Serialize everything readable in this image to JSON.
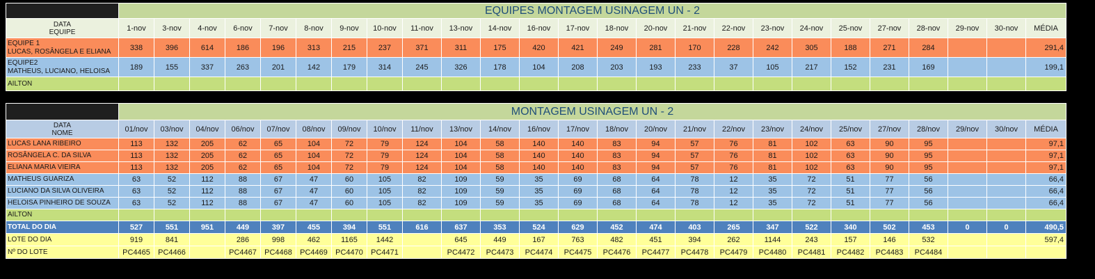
{
  "table1": {
    "title": "EQUIPES MONTAGEM USINAGEM UN - 2",
    "header_label_top": "DATA",
    "header_label_bottom": "EQUIPE",
    "dates": [
      "1-nov",
      "3-nov",
      "4-nov",
      "6-nov",
      "7-nov",
      "8-nov",
      "9-nov",
      "10-nov",
      "11-nov",
      "13-nov",
      "14-nov",
      "16-nov",
      "17-nov",
      "18-nov",
      "20-nov",
      "21-nov",
      "22-nov",
      "23-nov",
      "24-nov",
      "25-nov",
      "27-nov",
      "28-nov",
      "29-nov",
      "30-nov"
    ],
    "avg_label": "MÉDIA",
    "rows": [
      {
        "label1": "EQUIPE 1",
        "label2": "LUCAS, ROSÂNGELA E ELIANA",
        "color": "orange",
        "values": [
          "338",
          "396",
          "614",
          "186",
          "196",
          "313",
          "215",
          "237",
          "371",
          "311",
          "175",
          "420",
          "421",
          "249",
          "281",
          "170",
          "228",
          "242",
          "305",
          "188",
          "271",
          "284",
          "",
          ""
        ],
        "avg": "291,4"
      },
      {
        "label1": "EQUIPE2",
        "label2": "MATHEUS, LUCIANO, HELOISA",
        "color": "blue",
        "values": [
          "189",
          "155",
          "337",
          "263",
          "201",
          "142",
          "179",
          "314",
          "245",
          "326",
          "178",
          "104",
          "208",
          "203",
          "193",
          "233",
          "37",
          "105",
          "217",
          "152",
          "231",
          "169",
          "",
          ""
        ],
        "avg": "199,1"
      },
      {
        "label1": "AILTON",
        "label2": "",
        "color": "green",
        "values": [
          "",
          "",
          "",
          "",
          "",
          "",
          "",
          "",
          "",
          "",
          "",
          "",
          "",
          "",
          "",
          "",
          "",
          "",
          "",
          "",
          "",
          "",
          "",
          ""
        ],
        "avg": ""
      }
    ]
  },
  "table2": {
    "title": "MONTAGEM USINAGEM UN - 2",
    "header_label_top": "DATA",
    "header_label_bottom": "NOME",
    "dates": [
      "01/nov",
      "03/nov",
      "04/nov",
      "06/nov",
      "07/nov",
      "08/nov",
      "09/nov",
      "10/nov",
      "11/nov",
      "13/nov",
      "14/nov",
      "16/nov",
      "17/nov",
      "18/nov",
      "20/nov",
      "21/nov",
      "22/nov",
      "23/nov",
      "24/nov",
      "25/nov",
      "27/nov",
      "28/nov",
      "29/nov",
      "30/nov"
    ],
    "avg_label": "MÉDIA",
    "rows": [
      {
        "name": "LUCAS LANA RIBEIRO",
        "color": "orange",
        "values": [
          "113",
          "132",
          "205",
          "62",
          "65",
          "104",
          "72",
          "79",
          "124",
          "104",
          "58",
          "140",
          "140",
          "83",
          "94",
          "57",
          "76",
          "81",
          "102",
          "63",
          "90",
          "95",
          "",
          ""
        ],
        "avg": "97,1"
      },
      {
        "name": "ROSÂNGELA C. DA SILVA",
        "color": "orange",
        "values": [
          "113",
          "132",
          "205",
          "62",
          "65",
          "104",
          "72",
          "79",
          "124",
          "104",
          "58",
          "140",
          "140",
          "83",
          "94",
          "57",
          "76",
          "81",
          "102",
          "63",
          "90",
          "95",
          "",
          ""
        ],
        "avg": "97,1"
      },
      {
        "name": "ELIANA MARIA VIEIRA",
        "color": "orange",
        "values": [
          "113",
          "132",
          "205",
          "62",
          "65",
          "104",
          "72",
          "79",
          "124",
          "104",
          "58",
          "140",
          "140",
          "83",
          "94",
          "57",
          "76",
          "81",
          "102",
          "63",
          "90",
          "95",
          "",
          ""
        ],
        "avg": "97,1"
      },
      {
        "name": "MATHEUS GUARIZA",
        "color": "blue",
        "values": [
          "63",
          "52",
          "112",
          "88",
          "67",
          "47",
          "60",
          "105",
          "82",
          "109",
          "59",
          "35",
          "69",
          "68",
          "64",
          "78",
          "12",
          "35",
          "72",
          "51",
          "77",
          "56",
          "",
          ""
        ],
        "avg": "66,4"
      },
      {
        "name": "LUCIANO DA SILVA OLIVEIRA",
        "color": "blue",
        "values": [
          "63",
          "52",
          "112",
          "88",
          "67",
          "47",
          "60",
          "105",
          "82",
          "109",
          "59",
          "35",
          "69",
          "68",
          "64",
          "78",
          "12",
          "35",
          "72",
          "51",
          "77",
          "56",
          "",
          ""
        ],
        "avg": "66,4"
      },
      {
        "name": "HELOISA PINHEIRO DE SOUZA",
        "color": "blue",
        "values": [
          "63",
          "52",
          "112",
          "88",
          "67",
          "47",
          "60",
          "105",
          "82",
          "109",
          "59",
          "35",
          "69",
          "68",
          "64",
          "78",
          "12",
          "35",
          "72",
          "51",
          "77",
          "56",
          "",
          ""
        ],
        "avg": "66,4"
      },
      {
        "name": "AILTON",
        "color": "green",
        "values": [
          "",
          "",
          "",
          "",
          "",
          "",
          "",
          "",
          "",
          "",
          "",
          "",
          "",
          "",
          "",
          "",
          "",
          "",
          "",
          "",
          "",
          "",
          "",
          ""
        ],
        "avg": ""
      }
    ],
    "total": {
      "label": "TOTAL DO DIA",
      "values": [
        "527",
        "551",
        "951",
        "449",
        "397",
        "455",
        "394",
        "551",
        "616",
        "637",
        "353",
        "524",
        "629",
        "452",
        "474",
        "403",
        "265",
        "347",
        "522",
        "340",
        "502",
        "453",
        "0",
        "0"
      ],
      "avg": "490,5"
    },
    "lote": {
      "label": "LOTE DO DIA",
      "values": [
        "919",
        "841",
        "",
        "286",
        "998",
        "462",
        "1165",
        "1442",
        "",
        "645",
        "449",
        "167",
        "763",
        "482",
        "451",
        "394",
        "262",
        "1144",
        "243",
        "157",
        "146",
        "532",
        "",
        ""
      ],
      "avg": "597,4"
    },
    "lote_num": {
      "label": "Nº DO LOTE",
      "values": [
        "PC4465",
        "PC4466",
        "",
        "PC4467",
        "PC4468",
        "PC4469",
        "PC4470",
        "PC4471",
        "",
        "PC4472",
        "PC4473",
        "PC4474",
        "PC4475",
        "PC4476",
        "PC4477",
        "PC4478",
        "PC4479",
        "PC4480",
        "PC4481",
        "PC4482",
        "PC4483",
        "PC4484",
        "",
        ""
      ],
      "avg": ""
    }
  }
}
